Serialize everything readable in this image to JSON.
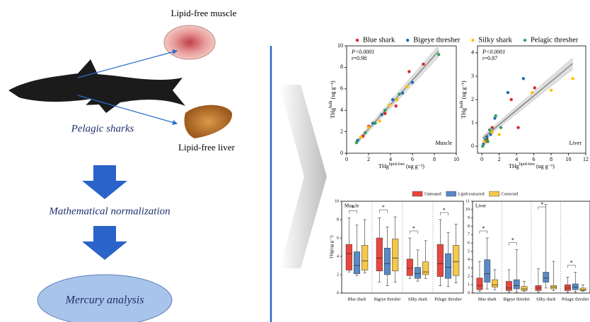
{
  "left": {
    "muscle_label": "Lipid-free muscle",
    "shark_label": "Pelagic sharks",
    "liver_label": "Lipid-free liver",
    "step1": "Mathematical  normalization",
    "step2": "Mercury analysis"
  },
  "chart_data": [
    {
      "type": "scatter",
      "annotation_p": "P<0.0001",
      "annotation_r": "r=0.98",
      "panel_label": "Muscle",
      "x_label": {
        "text": "THg",
        "sup": "lipid-free",
        "unit": " (ug g⁻¹)"
      },
      "y_label": {
        "text": "THg",
        "sup": "bulk",
        "unit": " (ug g⁻¹)"
      },
      "xlim": [
        0,
        10
      ],
      "xticks": [
        0,
        2,
        4,
        6,
        8,
        10
      ],
      "ylim": [
        0,
        10
      ],
      "yticks": [
        0,
        2,
        4,
        6,
        8,
        10
      ],
      "series": [
        {
          "name": "Blue shark",
          "color": "#d62728",
          "x": [
            1.5,
            2.0,
            3.5,
            4.5,
            5.7,
            7.0
          ],
          "values": [
            1.6,
            2.5,
            3.7,
            4.4,
            7.6,
            8.3
          ]
        },
        {
          "name": "Bigeye thresher",
          "color": "#1f6fb4",
          "x": [
            1.0,
            2.4,
            3.2,
            4.2,
            5.1,
            6.0
          ],
          "values": [
            1.2,
            2.8,
            3.6,
            5.0,
            5.6,
            6.6
          ]
        },
        {
          "name": "Silky shark",
          "color": "#ffc000",
          "x": [
            1.3,
            2.0,
            3.0,
            3.9,
            4.6,
            5.5
          ],
          "values": [
            1.5,
            2.4,
            3.0,
            4.5,
            5.0,
            6.2
          ]
        },
        {
          "name": "Pelagic thresher",
          "color": "#2ca05a",
          "x": [
            0.9,
            1.7,
            2.6,
            3.5,
            4.8,
            8.4
          ],
          "values": [
            1.0,
            1.9,
            2.8,
            4.0,
            5.5,
            9.2
          ]
        }
      ]
    },
    {
      "type": "scatter",
      "annotation_p": "P<0.0001",
      "annotation_r": "r=0.87",
      "panel_label": "Liver",
      "x_label": {
        "text": "THg",
        "sup": "lipid-free",
        "unit": " (ug g⁻¹)"
      },
      "y_label": {
        "text": "THg",
        "sup": "bulk",
        "unit": " (ug g⁻¹)"
      },
      "xlim": [
        -0.5,
        12
      ],
      "xticks": [
        0,
        2,
        4,
        6,
        8,
        10,
        12
      ],
      "ylim": [
        -0.3,
        4.3
      ],
      "yticks": [
        0,
        1,
        2,
        3,
        4
      ],
      "series": [
        {
          "color": "#d62728",
          "x": [
            0.5,
            1.2,
            3.4,
            4.2,
            6.1,
            0.6
          ],
          "values": [
            0.2,
            0.8,
            2.0,
            0.8,
            2.5,
            0.3
          ]
        },
        {
          "color": "#1f6fb4",
          "x": [
            0.2,
            0.6,
            1.5,
            3.0,
            4.8,
            1.0
          ],
          "values": [
            0.1,
            0.4,
            1.2,
            2.3,
            2.9,
            0.5
          ]
        },
        {
          "color": "#ffc000",
          "x": [
            0.3,
            1.2,
            2.0,
            5.8,
            8.0,
            10.5
          ],
          "values": [
            0.2,
            0.6,
            0.5,
            2.3,
            2.4,
            2.9
          ]
        },
        {
          "color": "#2ca05a",
          "x": [
            0.1,
            0.4,
            0.9,
            1.6,
            2.2,
            0.7
          ],
          "values": [
            0.0,
            0.3,
            0.7,
            1.3,
            0.8,
            0.2
          ]
        }
      ]
    },
    {
      "type": "box",
      "panel_label": "Muscle",
      "y_label": "THg(ug g⁻¹)",
      "categories": [
        "Blue shark",
        "Bigeye thresher",
        "Silky shark",
        "Pelagic thresher"
      ],
      "annotations": [
        "*",
        "*",
        "*",
        "*"
      ],
      "ylim": [
        0,
        10
      ],
      "yticks": [
        0,
        2,
        4,
        6,
        8,
        10
      ],
      "series": [
        {
          "name": "Untreated",
          "color": "#e8463f",
          "values": [
            [
              2.3,
              2.5,
              4.3,
              5.3,
              8.2
            ],
            [
              1.2,
              2.4,
              3.8,
              6.0,
              8.2
            ],
            [
              1.6,
              1.9,
              2.7,
              3.7,
              6.0
            ],
            [
              0.8,
              1.8,
              3.2,
              5.3,
              8.0
            ]
          ]
        },
        {
          "name": "Lipid-extracted",
          "color": "#5a8ac6",
          "values": [
            [
              1.9,
              2.1,
              3.0,
              4.5,
              7.4
            ],
            [
              0.8,
              2.0,
              3.2,
              4.9,
              7.2
            ],
            [
              1.3,
              1.6,
              2.1,
              2.8,
              4.7
            ],
            [
              0.7,
              1.6,
              2.8,
              4.3,
              6.6
            ]
          ]
        },
        {
          "name": "Corrected",
          "color": "#f5c74a",
          "values": [
            [
              2.2,
              2.5,
              3.5,
              5.2,
              8.0
            ],
            [
              1.2,
              2.4,
              3.8,
              5.9,
              8.3
            ],
            [
              1.6,
              2.0,
              2.3,
              3.4,
              5.7
            ],
            [
              1.1,
              1.9,
              3.4,
              5.2,
              7.5
            ]
          ]
        }
      ]
    },
    {
      "type": "box",
      "panel_label": "Liver",
      "categories": [
        "Blue shark",
        "Bigeye thresher",
        "Silky shark",
        "Pelagic thresher"
      ],
      "annotations": [
        "*",
        "*",
        "*",
        "*"
      ],
      "ylim": [
        0,
        11
      ],
      "yticks": [
        0,
        1,
        2,
        3,
        4,
        5,
        6,
        7,
        8,
        9,
        10,
        11
      ],
      "series": [
        {
          "color": "#e8463f",
          "values": [
            [
              0.2,
              0.4,
              0.9,
              1.8,
              3.8
            ],
            [
              0.1,
              0.3,
              0.6,
              1.4,
              2.8
            ],
            [
              0.1,
              0.3,
              0.6,
              0.9,
              2.9
            ],
            [
              0.1,
              0.3,
              0.6,
              1.0,
              1.9
            ]
          ]
        },
        {
          "color": "#5a8ac6",
          "values": [
            [
              0.5,
              1.3,
              2.3,
              4.0,
              6.6
            ],
            [
              0.1,
              0.5,
              0.9,
              1.6,
              5.2
            ],
            [
              0.6,
              1.3,
              1.8,
              2.5,
              10.6
            ],
            [
              0.1,
              0.4,
              0.7,
              1.1,
              2.5
            ]
          ]
        },
        {
          "color": "#f5c74a",
          "values": [
            [
              0.4,
              0.7,
              1.0,
              1.6,
              2.8
            ],
            [
              0.2,
              0.3,
              0.5,
              0.8,
              1.4
            ],
            [
              0.3,
              0.5,
              0.7,
              0.9,
              3.8
            ],
            [
              0.2,
              0.3,
              0.4,
              0.6,
              1.0
            ]
          ]
        }
      ]
    }
  ]
}
